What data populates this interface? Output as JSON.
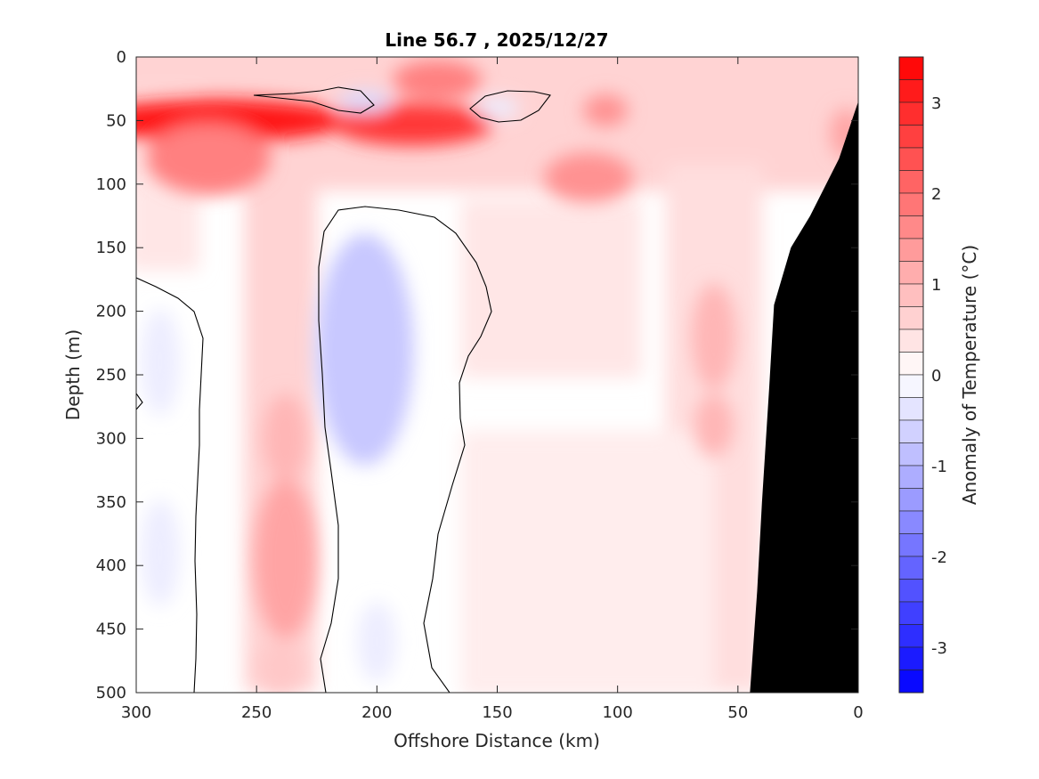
{
  "chart_data": {
    "type": "heatmap",
    "subtype": "filled-contour depth section",
    "title": "Line 56.7 , 2025/12/27",
    "xlabel": "Offshore Distance (km)",
    "ylabel": "Depth (m)",
    "colorbar_label": "Anomaly of Temperature (°C)",
    "xlim": [
      0,
      300
    ],
    "x_reversed": true,
    "ylim": [
      0,
      500
    ],
    "y_reversed": true,
    "xticks": [
      "300",
      "250",
      "200",
      "150",
      "100",
      "50",
      "0"
    ],
    "yticks": [
      "0",
      "50",
      "100",
      "150",
      "200",
      "250",
      "300",
      "350",
      "400",
      "450",
      "500"
    ],
    "colorbar": {
      "min": -3.5,
      "max": 3.5,
      "step": 0.25,
      "ticks": [
        "3",
        "2",
        "1",
        "0",
        "-1",
        "-2",
        "-3"
      ],
      "cold_color": "#0000ff",
      "warm_color": "#ff0000",
      "zero_color": "#ffffff"
    },
    "contour_level": 0,
    "features": [
      {
        "type": "warm",
        "x": 267,
        "y": 50,
        "value": 3.25
      },
      {
        "type": "warm",
        "x": 185,
        "y": 53,
        "value": 2.75
      },
      {
        "type": "warm",
        "x": 270,
        "y": 80,
        "value": 1.75
      },
      {
        "type": "warm",
        "x": 175,
        "y": 18,
        "value": 1.75
      },
      {
        "type": "warm",
        "x": 112,
        "y": 95,
        "value": 1.5
      },
      {
        "type": "warm",
        "x": 105,
        "y": 42,
        "value": 1.5
      },
      {
        "type": "warm",
        "x": 5,
        "y": 60,
        "value": 1.25
      },
      {
        "type": "warm",
        "x": 238,
        "y": 395,
        "value": 1.25
      },
      {
        "type": "warm",
        "x": 238,
        "y": 300,
        "value": 1.0
      },
      {
        "type": "warm",
        "x": 60,
        "y": 220,
        "value": 1.0
      },
      {
        "type": "warm",
        "x": 60,
        "y": 290,
        "value": 1.0
      },
      {
        "type": "warm",
        "x": 240,
        "y": 480,
        "value": 0.75
      },
      {
        "type": "cold",
        "x": 205,
        "y": 230,
        "value": -0.75
      },
      {
        "type": "cold",
        "x": 290,
        "y": 390,
        "value": -0.25
      },
      {
        "type": "cold",
        "x": 290,
        "y": 240,
        "value": -0.25
      },
      {
        "type": "cold",
        "x": 200,
        "y": 460,
        "value": -0.25
      },
      {
        "type": "cold",
        "x": 205,
        "y": 35,
        "value": -0.5
      },
      {
        "type": "cold",
        "x": 150,
        "y": 40,
        "value": -0.25
      }
    ],
    "land_mask_color": "#000000",
    "land_boundary": [
      [
        0,
        35
      ],
      [
        8,
        80
      ],
      [
        20,
        125
      ],
      [
        28,
        150
      ],
      [
        35,
        195
      ],
      [
        37,
        260
      ],
      [
        40,
        350
      ],
      [
        42,
        420
      ],
      [
        45,
        500
      ],
      [
        0,
        500
      ]
    ]
  }
}
